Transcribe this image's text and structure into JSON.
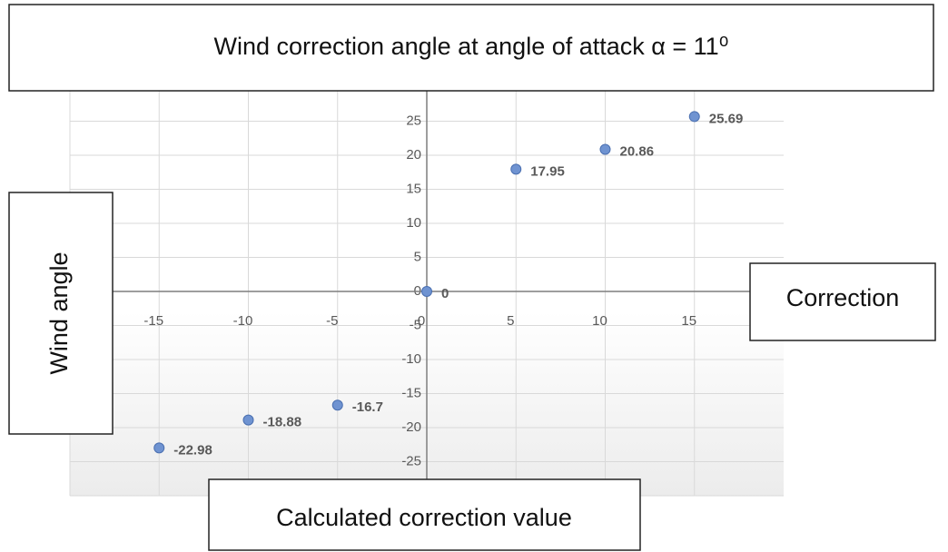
{
  "chart_data": {
    "type": "scatter",
    "title": "Wind correction angle at angle of attack α = 11⁰",
    "x_label": "Calculated correction value",
    "y_label": "Wind angle",
    "annotations": [
      "Correction"
    ],
    "x": [
      -15,
      -10,
      -5,
      0,
      5,
      10,
      15
    ],
    "values": [
      -22.98,
      -18.88,
      -16.7,
      0,
      17.95,
      20.86,
      25.69
    ],
    "color": "#6f93d1",
    "xlim": [
      -20,
      20
    ],
    "xticks": [
      -15,
      -10,
      -5,
      0,
      5,
      10,
      15
    ],
    "ylim": [
      -30,
      30
    ],
    "yticks": [
      -25,
      -20,
      -15,
      -10,
      -5,
      0,
      5,
      10,
      15,
      20,
      25,
      30
    ],
    "grid": true
  }
}
